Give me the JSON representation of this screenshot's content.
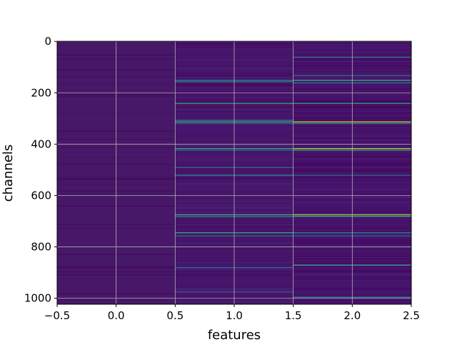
{
  "chart_data": {
    "type": "heatmap",
    "title": "",
    "xlabel": "features",
    "ylabel": "channels",
    "xlim": [
      -0.5,
      2.5
    ],
    "ylim": [
      1023.5,
      -0.5
    ],
    "x_ticks": [
      -0.5,
      0.0,
      0.5,
      1.0,
      1.5,
      2.0,
      2.5
    ],
    "x_tick_labels": [
      "−0.5",
      "0.0",
      "0.5",
      "1.0",
      "1.5",
      "2.0",
      "2.5"
    ],
    "y_ticks": [
      0,
      200,
      400,
      600,
      800,
      1000
    ],
    "y_tick_labels": [
      "0",
      "200",
      "400",
      "600",
      "800",
      "1000"
    ],
    "grid": true,
    "colormap": "viridis",
    "n_rows": 1024,
    "columns": [
      0,
      1,
      2
    ],
    "background_colors": [
      "#471868",
      "#46146a",
      "#45116a"
    ],
    "bright_rows": [
      [],
      [
        {
          "y": 150,
          "color": "#2a8c8c"
        },
        {
          "y": 156,
          "color": "#2c7f8e"
        },
        {
          "y": 240,
          "color": "#2fb47c"
        },
        {
          "y": 306,
          "color": "#2a8c8c"
        },
        {
          "y": 312,
          "color": "#3ab67a"
        },
        {
          "y": 318,
          "color": "#2f6b8e"
        },
        {
          "y": 416,
          "color": "#2fb47c"
        },
        {
          "y": 422,
          "color": "#2a788e"
        },
        {
          "y": 490,
          "color": "#2c728e"
        },
        {
          "y": 520,
          "color": "#2a8c8c"
        },
        {
          "y": 674,
          "color": "#3ab67a"
        },
        {
          "y": 680,
          "color": "#2a8c8c"
        },
        {
          "y": 744,
          "color": "#2fb47c"
        },
        {
          "y": 756,
          "color": "#2c728e"
        },
        {
          "y": 880,
          "color": "#2a788e"
        },
        {
          "y": 975,
          "color": "#31688e"
        }
      ],
      [
        {
          "y": 60,
          "color": "#2a8c8c"
        },
        {
          "y": 132,
          "color": "#2c728e"
        },
        {
          "y": 150,
          "color": "#35b779"
        },
        {
          "y": 160,
          "color": "#2a8c8c"
        },
        {
          "y": 240,
          "color": "#2fb47c"
        },
        {
          "y": 312,
          "color": "#d2e21b"
        },
        {
          "y": 318,
          "color": "#2a8c8c"
        },
        {
          "y": 416,
          "color": "#b8de29"
        },
        {
          "y": 422,
          "color": "#35b779"
        },
        {
          "y": 520,
          "color": "#2c728e"
        },
        {
          "y": 674,
          "color": "#a0da39"
        },
        {
          "y": 680,
          "color": "#2fb47c"
        },
        {
          "y": 744,
          "color": "#2a8c8c"
        },
        {
          "y": 756,
          "color": "#2c728e"
        },
        {
          "y": 870,
          "color": "#2fb47c"
        },
        {
          "y": 995,
          "color": "#2a8c8c"
        }
      ]
    ]
  }
}
